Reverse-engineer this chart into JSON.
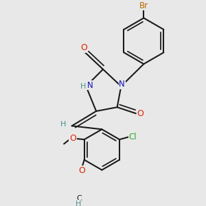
{
  "bg_color": "#e8e8e8",
  "bond_color": "#1a1a1a",
  "bond_width": 1.5,
  "atom_colors": {
    "O": "#dd2200",
    "N": "#1111bb",
    "H": "#4a9090",
    "Cl": "#2eaa2e",
    "Br": "#bb6600",
    "C": "#1a1a1a"
  },
  "figsize": [
    3.0,
    3.0
  ],
  "dpi": 100
}
